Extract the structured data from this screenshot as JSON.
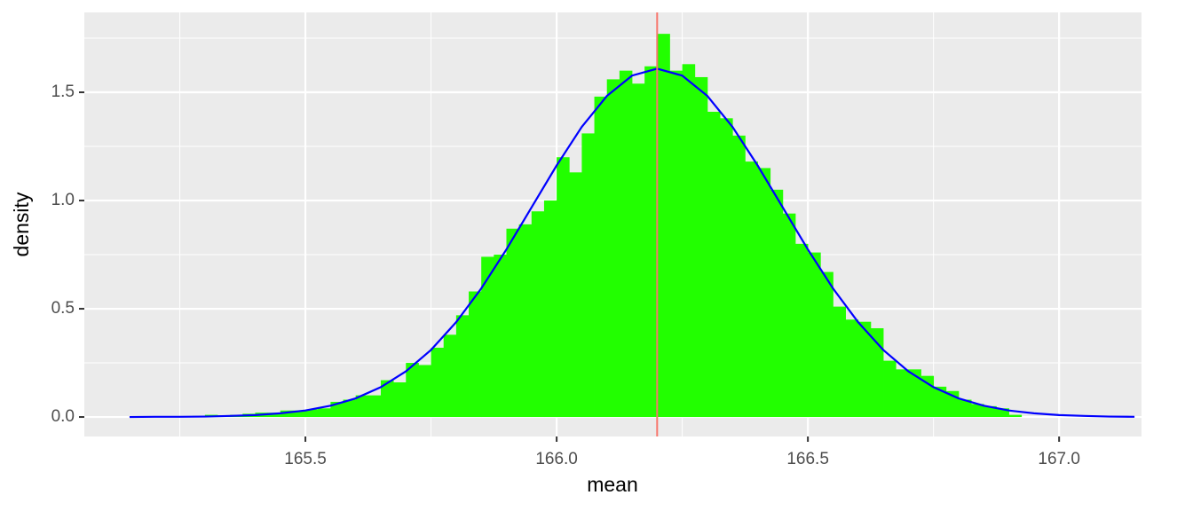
{
  "chart_data": {
    "type": "histogram",
    "x_label": "mean",
    "y_label": "density",
    "bins": [
      165.15,
      165.175,
      165.2,
      165.225,
      165.25,
      165.275,
      165.3,
      165.325,
      165.35,
      165.375,
      165.4,
      165.425,
      165.45,
      165.475,
      165.5,
      165.525,
      165.55,
      165.575,
      165.6,
      165.625,
      165.65,
      165.675,
      165.7,
      165.725,
      165.75,
      165.775,
      165.8,
      165.825,
      165.85,
      165.875,
      165.9,
      165.925,
      165.95,
      165.975,
      166,
      166.025,
      166.05,
      166.075,
      166.1,
      166.125,
      166.15,
      166.175,
      166.2,
      166.225,
      166.25,
      166.275,
      166.3,
      166.325,
      166.35,
      166.375,
      166.4,
      166.425,
      166.45,
      166.475,
      166.5,
      166.525,
      166.55,
      166.575,
      166.6,
      166.625,
      166.65,
      166.675,
      166.7,
      166.725,
      166.75,
      166.775,
      166.8,
      166.825,
      166.85,
      166.875,
      166.9,
      166.925
    ],
    "values": [
      0.003,
      0,
      0,
      0,
      0.003,
      0.005,
      0.01,
      0.008,
      0.01,
      0.015,
      0.02,
      0.02,
      0.03,
      0.03,
      0.035,
      0.04,
      0.07,
      0.08,
      0.1,
      0.1,
      0.17,
      0.16,
      0.25,
      0.24,
      0.32,
      0.38,
      0.47,
      0.58,
      0.74,
      0.75,
      0.87,
      0.89,
      0.95,
      1.0,
      1.2,
      1.13,
      1.31,
      1.48,
      1.56,
      1.6,
      1.54,
      1.62,
      1.77,
      1.6,
      1.63,
      1.57,
      1.41,
      1.38,
      1.3,
      1.18,
      1.15,
      1.05,
      0.94,
      0.8,
      0.76,
      0.67,
      0.51,
      0.45,
      0.44,
      0.41,
      0.26,
      0.22,
      0.22,
      0.19,
      0.14,
      0.12,
      0.08,
      0.06,
      0.05,
      0.04,
      0.01
    ],
    "color": "#22ff00",
    "density_curve": {
      "color": "#0000ff",
      "x": [
        165.15,
        165.2,
        165.25,
        165.3,
        165.35,
        165.4,
        165.45,
        165.5,
        165.55,
        165.6,
        165.65,
        165.7,
        165.75,
        165.8,
        165.85,
        165.9,
        165.95,
        166.0,
        166.05,
        166.1,
        166.15,
        166.2,
        166.25,
        166.3,
        166.35,
        166.4,
        166.45,
        166.5,
        166.55,
        166.6,
        166.65,
        166.7,
        166.75,
        166.8,
        166.85,
        166.9,
        166.95,
        167.0,
        167.05,
        167.1,
        167.15
      ],
      "y": [
        0,
        0.001,
        0.001,
        0.002,
        0.005,
        0.009,
        0.017,
        0.03,
        0.052,
        0.086,
        0.138,
        0.211,
        0.31,
        0.438,
        0.594,
        0.774,
        0.968,
        1.162,
        1.34,
        1.483,
        1.577,
        1.609,
        1.577,
        1.483,
        1.34,
        1.162,
        0.968,
        0.774,
        0.594,
        0.438,
        0.31,
        0.211,
        0.138,
        0.086,
        0.052,
        0.03,
        0.017,
        0.009,
        0.005,
        0.002,
        0.001
      ]
    },
    "vline": {
      "value": 166.2,
      "color": "#f8766d"
    },
    "xlim": [
      165.06,
      167.164
    ],
    "ylim": [
      -0.09,
      1.869
    ],
    "xticks": [
      165.5,
      {
        "value": 166,
        "label": "166.0"
      },
      166.5,
      {
        "value": 167,
        "label": "167.0"
      }
    ],
    "yticks": [
      {
        "value": 0,
        "label": "0.0"
      },
      0.5,
      {
        "value": 1,
        "label": "1.0"
      },
      1.5
    ],
    "x_minor_breaks": [
      165.25,
      165.75,
      166.25,
      166.75
    ],
    "y_minor_breaks": [
      0.25,
      0.75,
      1.25,
      1.75
    ],
    "grid": true
  }
}
